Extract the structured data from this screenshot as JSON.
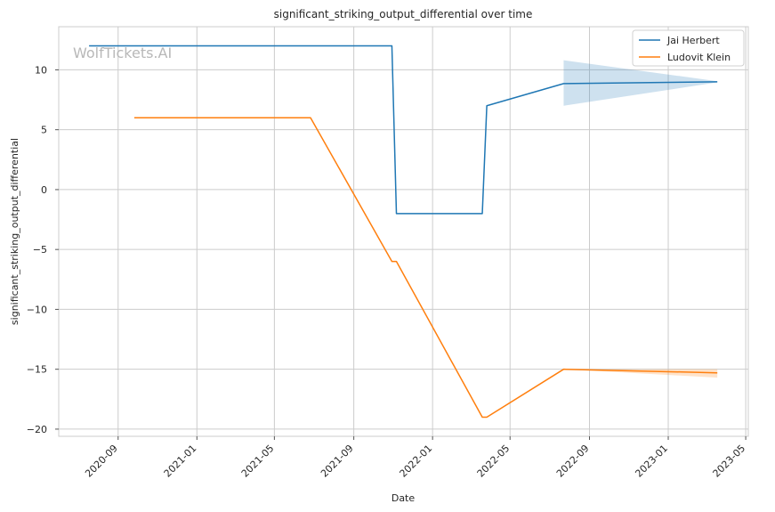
{
  "watermark": "WolfTickets.AI",
  "chart_data": {
    "type": "line",
    "title": "significant_striking_output_differential over time",
    "xlabel": "Date",
    "ylabel": "significant_striking_output_differential",
    "grid": true,
    "legend_position": "top-right",
    "xlim": [
      "2020-06-01",
      "2023-05-05"
    ],
    "ylim": [
      -20.6,
      13.6
    ],
    "x_ticks": [
      "2020-09",
      "2021-01",
      "2021-05",
      "2021-09",
      "2022-01",
      "2022-05",
      "2022-09",
      "2023-01",
      "2023-05"
    ],
    "y_ticks": [
      10,
      5,
      0,
      -5,
      -10,
      -15,
      -20
    ],
    "y_tick_labels": [
      "10",
      "5",
      "0",
      "−5",
      "−10",
      "−15",
      "−20"
    ],
    "series": [
      {
        "name": "Jai Herbert",
        "color": "#1f77b4",
        "points": [
          [
            "2020-07-18",
            12
          ],
          [
            "2021-10-30",
            12
          ],
          [
            "2021-11-06",
            -2
          ],
          [
            "2022-03-19",
            -2
          ],
          [
            "2022-03-26",
            7
          ],
          [
            "2022-07-23",
            8.85
          ],
          [
            "2023-03-18",
            9
          ]
        ],
        "band": {
          "x": [
            "2022-07-23",
            "2023-03-18"
          ],
          "upper": [
            10.8,
            9.05
          ],
          "lower": [
            7.0,
            8.95
          ]
        }
      },
      {
        "name": "Ludovit Klein",
        "color": "#ff7f0e",
        "points": [
          [
            "2020-09-26",
            6
          ],
          [
            "2021-06-26",
            6
          ],
          [
            "2021-10-30",
            -6
          ],
          [
            "2021-11-06",
            -6
          ],
          [
            "2022-03-19",
            -19
          ],
          [
            "2022-03-26",
            -19
          ],
          [
            "2022-07-23",
            -15
          ],
          [
            "2023-03-18",
            -15.3
          ]
        ],
        "band": {
          "x": [
            "2022-07-23",
            "2023-03-18"
          ],
          "upper": [
            -15.0,
            -15.0
          ],
          "lower": [
            -15.0,
            -15.7
          ]
        }
      }
    ]
  }
}
